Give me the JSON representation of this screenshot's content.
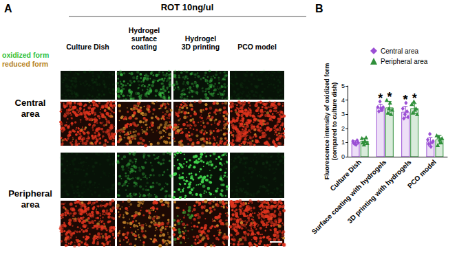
{
  "panel_a": {
    "label": "A",
    "title": "ROT 10ng/ul",
    "legend": [
      {
        "text": "oxidized form",
        "color": "#2fbf3a"
      },
      {
        "text": "reduced form",
        "color": "#b5832a"
      }
    ],
    "columns": [
      [
        "Culture Dish"
      ],
      [
        "Hydrogel",
        "surface",
        "coating"
      ],
      [
        "Hydrogel",
        "3D printing"
      ],
      [
        "PCO model"
      ]
    ],
    "rows": [
      [
        "Central",
        "area"
      ],
      [
        "Peripheral",
        "area"
      ]
    ]
  },
  "chart_data": {
    "type": "bar",
    "panel_label": "B",
    "y_label": [
      "Fluorescence intensity of oxidized form",
      "(compared to culture dish)"
    ],
    "categories": [
      "Culture Dish",
      "Surface coating with hydrogels",
      "3D printing with hydrogels",
      "PCO model"
    ],
    "ylim": [
      0,
      5
    ],
    "yticks": [
      0,
      1,
      2,
      3,
      4,
      5
    ],
    "grid": false,
    "legend": "top-right",
    "series": [
      {
        "name": "Central area",
        "color": "#9b4fd4",
        "marker": "diamond",
        "values": [
          1.0,
          3.45,
          3.15,
          1.05
        ],
        "errors": [
          0.12,
          0.25,
          0.4,
          0.3
        ],
        "points": [
          [
            1.1,
            0.95,
            0.9,
            0.85,
            1.15,
            1.0
          ],
          [
            3.5,
            3.2,
            3.9,
            3.4,
            3.3,
            3.5
          ],
          [
            3.4,
            2.7,
            3.0,
            3.8,
            3.2,
            2.8
          ],
          [
            1.2,
            0.9,
            1.6,
            0.7,
            1.0,
            1.1
          ]
        ],
        "significance": [
          null,
          "*",
          "*",
          null
        ]
      },
      {
        "name": "Peripheral area",
        "color": "#2f8f3a",
        "marker": "triangle",
        "values": [
          1.1,
          3.45,
          3.4,
          1.2
        ],
        "errors": [
          0.2,
          0.45,
          0.35,
          0.3
        ],
        "points": [
          [
            1.3,
            1.0,
            0.85,
            1.1,
            1.35,
            0.95
          ],
          [
            4.0,
            3.1,
            3.4,
            3.8,
            3.0,
            3.3
          ],
          [
            3.7,
            3.1,
            3.9,
            3.3,
            3.4,
            3.0
          ],
          [
            1.5,
            0.8,
            1.4,
            1.2,
            1.0,
            1.3
          ]
        ],
        "significance": [
          null,
          "*",
          "*",
          null
        ]
      }
    ]
  }
}
